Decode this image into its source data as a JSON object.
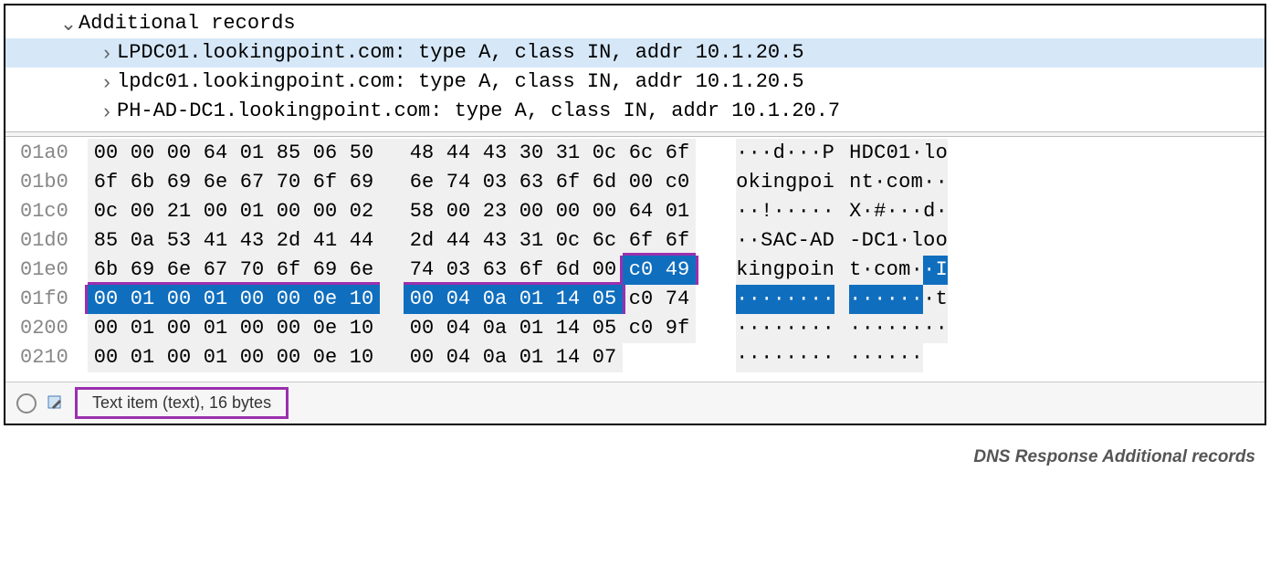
{
  "tree": {
    "header": "Additional records",
    "records": [
      {
        "text": "LPDC01.lookingpoint.com: type A, class IN, addr 10.1.20.5",
        "selected": true
      },
      {
        "text": "lpdc01.lookingpoint.com: type A, class IN, addr 10.1.20.5",
        "selected": false
      },
      {
        "text": "PH-AD-DC1.lookingpoint.com: type A, class IN, addr 10.1.20.7",
        "selected": false
      }
    ]
  },
  "hex": {
    "rows": [
      {
        "offset": "01a0",
        "bytes": [
          "00",
          "00",
          "00",
          "64",
          "01",
          "85",
          "06",
          "50",
          "48",
          "44",
          "43",
          "30",
          "31",
          "0c",
          "6c",
          "6f"
        ],
        "ascii": [
          "·",
          "·",
          "·",
          "d",
          "·",
          "·",
          "·",
          "P",
          "H",
          "D",
          "C",
          "0",
          "1",
          "·",
          "l",
          "o"
        ],
        "hl": [
          0,
          0,
          0,
          0,
          0,
          0,
          0,
          0,
          0,
          0,
          0,
          0,
          0,
          0,
          0,
          0
        ]
      },
      {
        "offset": "01b0",
        "bytes": [
          "6f",
          "6b",
          "69",
          "6e",
          "67",
          "70",
          "6f",
          "69",
          "6e",
          "74",
          "03",
          "63",
          "6f",
          "6d",
          "00",
          "c0"
        ],
        "ascii": [
          "o",
          "k",
          "i",
          "n",
          "g",
          "p",
          "o",
          "i",
          "n",
          "t",
          "·",
          "c",
          "o",
          "m",
          "·",
          "·"
        ],
        "hl": [
          0,
          0,
          0,
          0,
          0,
          0,
          0,
          0,
          0,
          0,
          0,
          0,
          0,
          0,
          0,
          0
        ]
      },
      {
        "offset": "01c0",
        "bytes": [
          "0c",
          "00",
          "21",
          "00",
          "01",
          "00",
          "00",
          "02",
          "58",
          "00",
          "23",
          "00",
          "00",
          "00",
          "64",
          "01"
        ],
        "ascii": [
          "·",
          "·",
          "!",
          "·",
          "·",
          "·",
          "·",
          "·",
          "X",
          "·",
          "#",
          "·",
          "·",
          "·",
          "d",
          "·"
        ],
        "hl": [
          0,
          0,
          0,
          0,
          0,
          0,
          0,
          0,
          0,
          0,
          0,
          0,
          0,
          0,
          0,
          0
        ]
      },
      {
        "offset": "01d0",
        "bytes": [
          "85",
          "0a",
          "53",
          "41",
          "43",
          "2d",
          "41",
          "44",
          "2d",
          "44",
          "43",
          "31",
          "0c",
          "6c",
          "6f",
          "6f"
        ],
        "ascii": [
          "·",
          "·",
          "S",
          "A",
          "C",
          "-",
          "A",
          "D",
          "-",
          "D",
          "C",
          "1",
          "·",
          "l",
          "o",
          "o"
        ],
        "hl": [
          0,
          0,
          0,
          0,
          0,
          0,
          0,
          0,
          0,
          0,
          0,
          0,
          0,
          0,
          0,
          0
        ]
      },
      {
        "offset": "01e0",
        "bytes": [
          "6b",
          "69",
          "6e",
          "67",
          "70",
          "6f",
          "69",
          "6e",
          "74",
          "03",
          "63",
          "6f",
          "6d",
          "00",
          "c0",
          "49"
        ],
        "ascii": [
          "k",
          "i",
          "n",
          "g",
          "p",
          "o",
          "i",
          "n",
          "t",
          "·",
          "c",
          "o",
          "m",
          "·",
          "·",
          "I"
        ],
        "hl": [
          0,
          0,
          0,
          0,
          0,
          0,
          0,
          0,
          0,
          0,
          0,
          0,
          0,
          0,
          1,
          1
        ]
      },
      {
        "offset": "01f0",
        "bytes": [
          "00",
          "01",
          "00",
          "01",
          "00",
          "00",
          "0e",
          "10",
          "00",
          "04",
          "0a",
          "01",
          "14",
          "05",
          "c0",
          "74"
        ],
        "ascii": [
          "·",
          "·",
          "·",
          "·",
          "·",
          "·",
          "·",
          "·",
          "·",
          "·",
          "·",
          "·",
          "·",
          "·",
          "·",
          "t"
        ],
        "hl": [
          1,
          1,
          1,
          1,
          1,
          1,
          1,
          1,
          1,
          1,
          1,
          1,
          1,
          1,
          0,
          0
        ]
      },
      {
        "offset": "0200",
        "bytes": [
          "00",
          "01",
          "00",
          "01",
          "00",
          "00",
          "0e",
          "10",
          "00",
          "04",
          "0a",
          "01",
          "14",
          "05",
          "c0",
          "9f"
        ],
        "ascii": [
          "·",
          "·",
          "·",
          "·",
          "·",
          "·",
          "·",
          "·",
          "·",
          "·",
          "·",
          "·",
          "·",
          "·",
          "·",
          "·"
        ],
        "hl": [
          0,
          0,
          0,
          0,
          0,
          0,
          0,
          0,
          0,
          0,
          0,
          0,
          0,
          0,
          0,
          0
        ]
      },
      {
        "offset": "0210",
        "bytes": [
          "00",
          "01",
          "00",
          "01",
          "00",
          "00",
          "0e",
          "10",
          "00",
          "04",
          "0a",
          "01",
          "14",
          "07",
          "",
          ""
        ],
        "ascii": [
          "·",
          "·",
          "·",
          "·",
          "·",
          "·",
          "·",
          "·",
          "·",
          "·",
          "·",
          "·",
          "·",
          "·",
          "",
          ""
        ],
        "hl": [
          0,
          0,
          0,
          0,
          0,
          0,
          0,
          0,
          0,
          0,
          0,
          0,
          0,
          0,
          0,
          0
        ]
      }
    ]
  },
  "status": {
    "text": "Text item (text), 16 bytes"
  },
  "caption": "DNS Response Additional records",
  "colors": {
    "selection_bg": "#d6e8f8",
    "highlight_bg": "#106ebe",
    "highlight_fg": "#ffffff",
    "box_outline": "#9b2fae",
    "offset_fg": "#888888",
    "stripe_bg": "#f0f0f0"
  }
}
